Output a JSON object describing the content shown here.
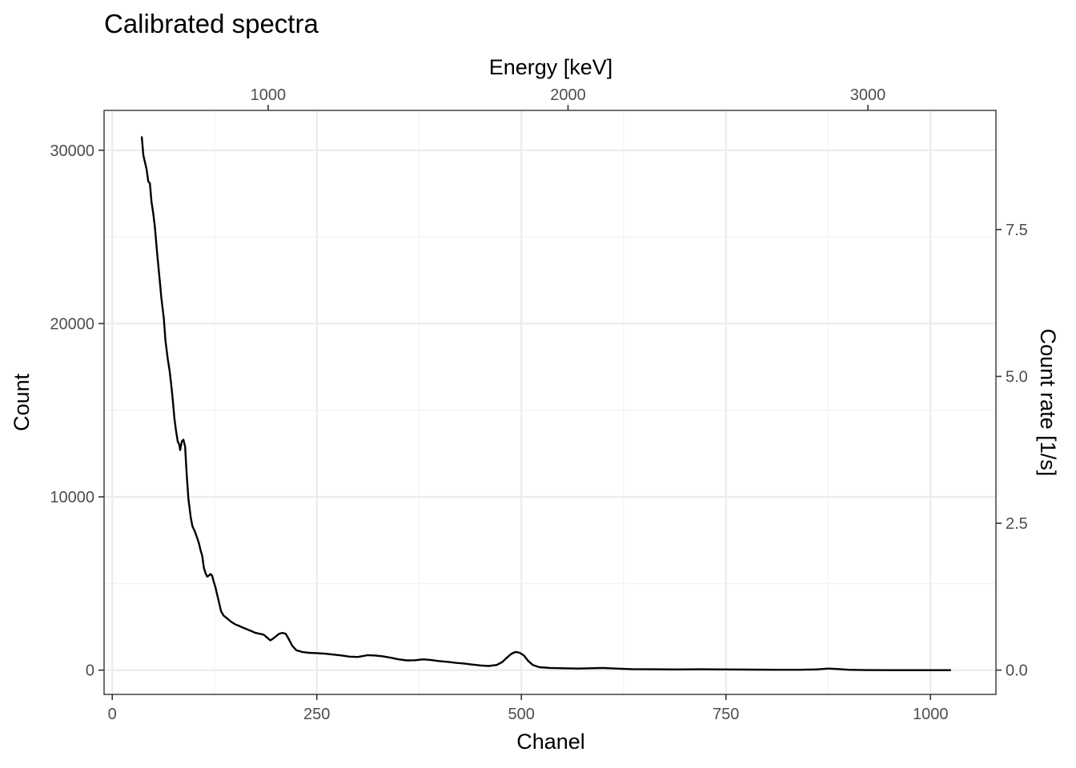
{
  "chart_data": {
    "type": "line",
    "title": "Calibrated spectra",
    "xlabel": "Chanel",
    "ylabel": "Count",
    "x2label": "Energy [keV]",
    "y2label": "Count rate [1/s]",
    "xlim": [
      -10,
      1080
    ],
    "ylim": [
      -1400,
      32300
    ],
    "x_ticks": [
      0,
      250,
      500,
      750,
      1000
    ],
    "y_ticks": [
      0,
      10000,
      20000,
      30000
    ],
    "x2_ticks": [
      1000,
      2000,
      3000
    ],
    "x2_channel_at_0keV": -176,
    "x2_channel_per_keV": 0.3665,
    "y2_ticks": [
      "0.0",
      "2.5",
      "5.0",
      "7.5"
    ],
    "y2_count_per_rate": 3390,
    "grid": true,
    "series": [
      {
        "color": "#000000",
        "points": [
          [
            36,
            30800
          ],
          [
            38,
            29700
          ],
          [
            40,
            29300
          ],
          [
            42,
            28900
          ],
          [
            44,
            28200
          ],
          [
            46,
            28100
          ],
          [
            48,
            27000
          ],
          [
            50,
            26400
          ],
          [
            52,
            25600
          ],
          [
            55,
            24000
          ],
          [
            58,
            22500
          ],
          [
            60,
            21500
          ],
          [
            63,
            20300
          ],
          [
            65,
            19000
          ],
          [
            68,
            17900
          ],
          [
            70,
            17300
          ],
          [
            72,
            16500
          ],
          [
            74,
            15600
          ],
          [
            76,
            14500
          ],
          [
            78,
            13800
          ],
          [
            80,
            13200
          ],
          [
            82,
            13000
          ],
          [
            83,
            12700
          ],
          [
            85,
            13200
          ],
          [
            87,
            13300
          ],
          [
            89,
            12900
          ],
          [
            91,
            11300
          ],
          [
            93,
            9900
          ],
          [
            96,
            8800
          ],
          [
            98,
            8300
          ],
          [
            101,
            8000
          ],
          [
            104,
            7600
          ],
          [
            106,
            7300
          ],
          [
            108,
            6900
          ],
          [
            110,
            6600
          ],
          [
            112,
            5900
          ],
          [
            114,
            5600
          ],
          [
            116,
            5400
          ],
          [
            118,
            5450
          ],
          [
            120,
            5550
          ],
          [
            122,
            5450
          ],
          [
            124,
            5100
          ],
          [
            126,
            4800
          ],
          [
            128,
            4400
          ],
          [
            130,
            4000
          ],
          [
            133,
            3400
          ],
          [
            136,
            3150
          ],
          [
            140,
            3000
          ],
          [
            145,
            2800
          ],
          [
            150,
            2650
          ],
          [
            155,
            2550
          ],
          [
            160,
            2450
          ],
          [
            165,
            2350
          ],
          [
            170,
            2250
          ],
          [
            175,
            2150
          ],
          [
            180,
            2100
          ],
          [
            185,
            2050
          ],
          [
            190,
            1850
          ],
          [
            193,
            1720
          ],
          [
            196,
            1800
          ],
          [
            200,
            1950
          ],
          [
            204,
            2100
          ],
          [
            208,
            2150
          ],
          [
            212,
            2100
          ],
          [
            215,
            1850
          ],
          [
            220,
            1400
          ],
          [
            225,
            1150
          ],
          [
            232,
            1050
          ],
          [
            240,
            1000
          ],
          [
            250,
            980
          ],
          [
            260,
            950
          ],
          [
            270,
            900
          ],
          [
            280,
            850
          ],
          [
            290,
            780
          ],
          [
            300,
            760
          ],
          [
            305,
            800
          ],
          [
            312,
            860
          ],
          [
            320,
            850
          ],
          [
            330,
            800
          ],
          [
            340,
            720
          ],
          [
            350,
            620
          ],
          [
            360,
            560
          ],
          [
            370,
            570
          ],
          [
            380,
            620
          ],
          [
            390,
            580
          ],
          [
            400,
            520
          ],
          [
            410,
            480
          ],
          [
            420,
            420
          ],
          [
            430,
            380
          ],
          [
            440,
            320
          ],
          [
            450,
            270
          ],
          [
            460,
            240
          ],
          [
            470,
            300
          ],
          [
            477,
            480
          ],
          [
            483,
            750
          ],
          [
            488,
            950
          ],
          [
            493,
            1050
          ],
          [
            498,
            1000
          ],
          [
            503,
            850
          ],
          [
            508,
            550
          ],
          [
            514,
            300
          ],
          [
            522,
            170
          ],
          [
            535,
            130
          ],
          [
            550,
            110
          ],
          [
            570,
            90
          ],
          [
            585,
            110
          ],
          [
            600,
            130
          ],
          [
            615,
            90
          ],
          [
            635,
            60
          ],
          [
            660,
            50
          ],
          [
            690,
            40
          ],
          [
            720,
            50
          ],
          [
            750,
            40
          ],
          [
            780,
            30
          ],
          [
            810,
            20
          ],
          [
            840,
            20
          ],
          [
            860,
            40
          ],
          [
            875,
            90
          ],
          [
            885,
            70
          ],
          [
            900,
            20
          ],
          [
            920,
            5
          ],
          [
            950,
            0
          ],
          [
            980,
            0
          ],
          [
            1010,
            0
          ],
          [
            1025,
            0
          ]
        ]
      }
    ]
  }
}
